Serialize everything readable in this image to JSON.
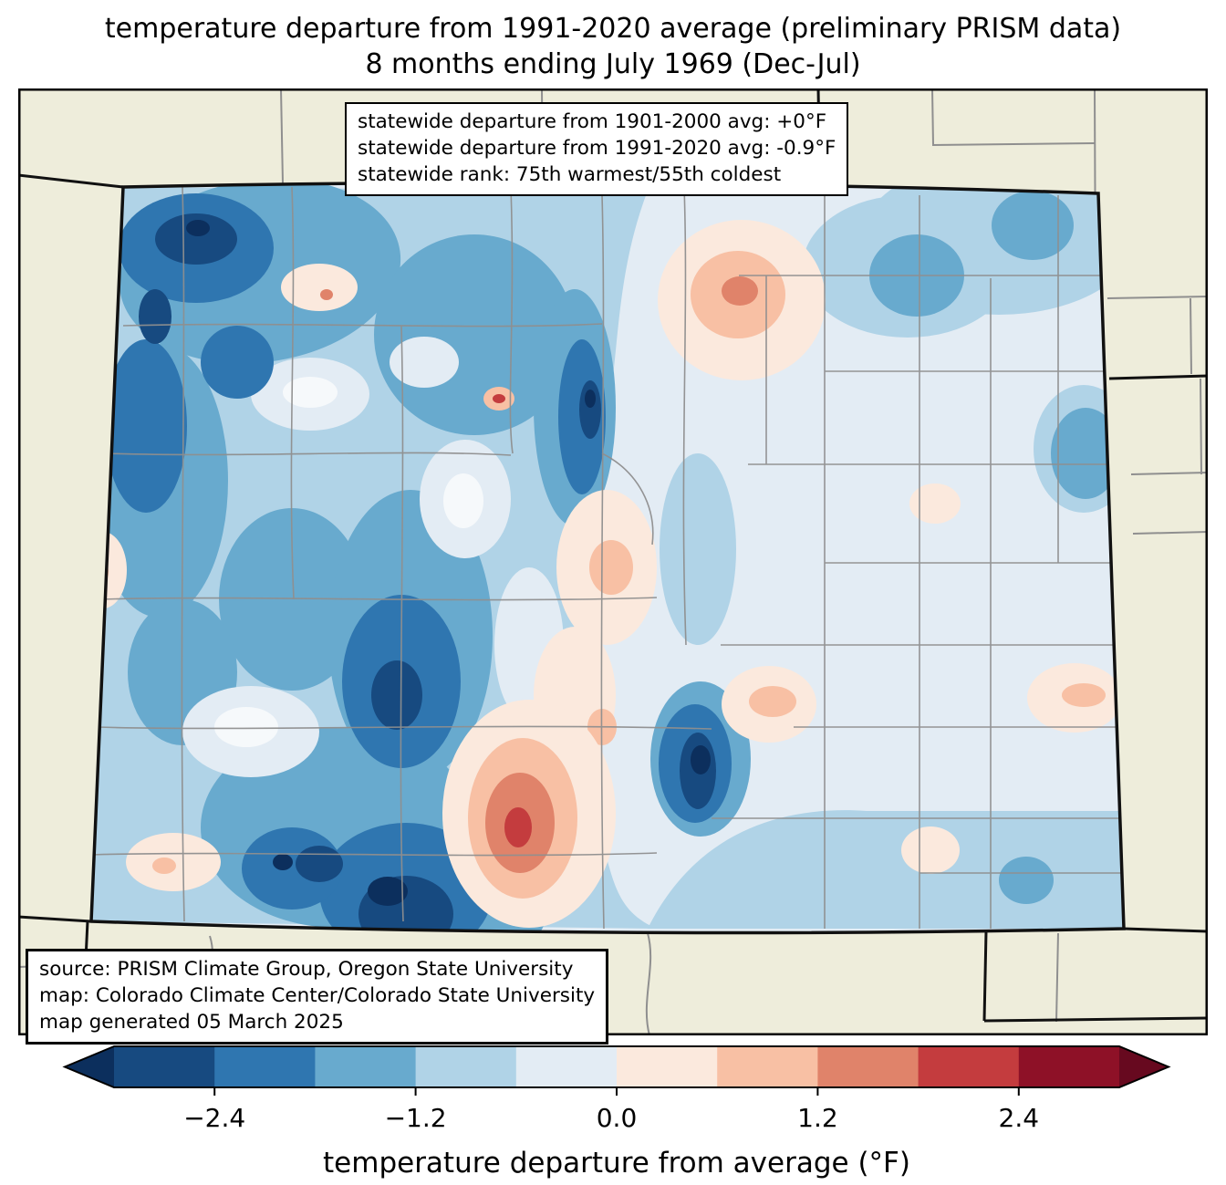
{
  "title": {
    "lines": [
      "temperature departure from 1991-2020 average (preliminary PRISM data)",
      "8 months ending July 1969 (Dec-Jul)"
    ]
  },
  "stats_box": {
    "lines": [
      "statewide departure from 1901-2000 avg: +0°F",
      "statewide departure from 1991-2020 avg: -0.9°F",
      "statewide rank: 75th warmest/55th coldest"
    ]
  },
  "source_box": {
    "lines": [
      "source: PRISM Climate Group, Oregon State University",
      "map: Colorado Climate Center/Colorado State University",
      "map generated 05 March 2025"
    ]
  },
  "colorbar": {
    "label": "temperature departure from average (°F)",
    "ticks": [
      "−2.4",
      "−1.2",
      "0.0",
      "1.2",
      "2.4"
    ],
    "tick_values": [
      -2.4,
      -1.2,
      0.0,
      1.2,
      2.4
    ],
    "range": [
      -3.0,
      3.0
    ],
    "under_color": "#0c2f5d",
    "bin_colors": [
      "#174a80",
      "#2f76b0",
      "#68aace",
      "#b0d3e7",
      "#e3ecf4",
      "#fbe9dd",
      "#f8c0a4",
      "#e0836a",
      "#c43c3e",
      "#8e1127"
    ],
    "over_color": "#67091f",
    "outline_color": "#000000"
  },
  "map": {
    "surround_fill": "#eeeddb",
    "county_line_color": "#8f8f8f",
    "state_border_color": "#111111",
    "frame_border_color": "#000000",
    "base_fill": "#e3ecf4"
  },
  "chart_data": {
    "type": "heatmap",
    "title": "temperature departure from 1991-2020 average (preliminary PRISM data)",
    "subtitle": "8 months ending July 1969 (Dec-Jul)",
    "colorbar_label": "temperature departure from average (°F)",
    "colorbar_ticks": [
      -2.4,
      -1.2,
      0.0,
      1.2,
      2.4
    ],
    "colorbar_range": [
      -3.0,
      3.0
    ],
    "statewide_departure_from_1901_2000_avg_F": "+0",
    "statewide_departure_from_1991_2020_avg_F": "-0.9",
    "statewide_rank": "75th warmest/55th coldest"
  }
}
